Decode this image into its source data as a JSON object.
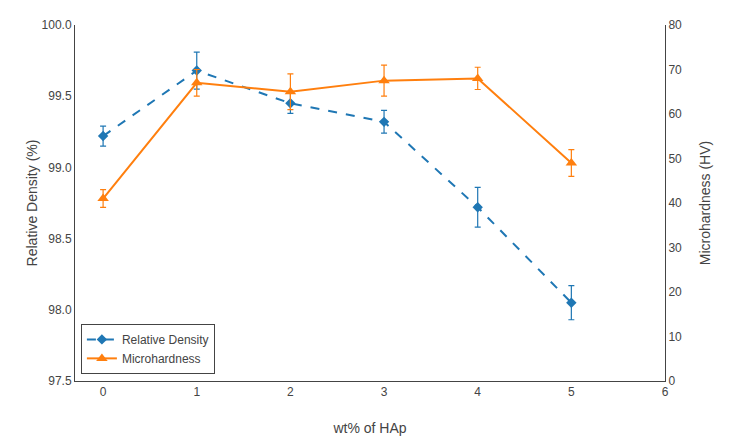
{
  "chart_data": {
    "type": "line",
    "xlabel": "wt% of HAp",
    "ylabel": "Relative Density (%)",
    "y2label": "Microhardness (HV)",
    "x": [
      0,
      1,
      2,
      3,
      4,
      5
    ],
    "xlim": [
      -0.3,
      6
    ],
    "xticks": [
      0,
      1,
      2,
      3,
      4,
      5,
      6
    ],
    "ylim": [
      97.5,
      100.0
    ],
    "yticks": [
      97.5,
      {
        "value": 98,
        "label": "98.0"
      },
      98.5,
      {
        "value": 99,
        "label": "99.0"
      },
      99.5,
      {
        "value": 100,
        "label": "100.0"
      }
    ],
    "y2lim": [
      0,
      80
    ],
    "y2ticks": [
      0,
      10,
      20,
      30,
      40,
      50,
      60,
      70,
      80
    ],
    "grid": false,
    "legend": "lower left",
    "series": [
      {
        "name": "Relative Density",
        "values": [
          99.22,
          99.68,
          99.45,
          99.32,
          98.72,
          98.05
        ],
        "errors": [
          0.07,
          0.13,
          0.07,
          0.08,
          0.14,
          0.12
        ],
        "marker": "diamond",
        "line_style": "dashed",
        "axis": "y"
      },
      {
        "name": "Microhardness",
        "values": [
          41,
          67,
          65,
          67.5,
          68,
          49
        ],
        "errors": [
          2.0,
          3.0,
          4.0,
          3.5,
          2.5,
          3.0
        ],
        "marker": "triangle",
        "line_style": "solid",
        "axis": "y2"
      }
    ]
  }
}
